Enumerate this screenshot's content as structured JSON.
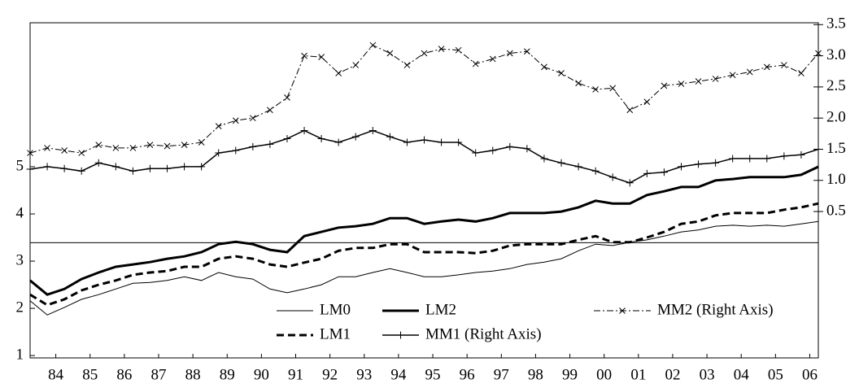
{
  "chart_data": {
    "type": "line",
    "x": [
      1983.75,
      1984.25,
      1984.75,
      1985.25,
      1985.75,
      1986.25,
      1986.75,
      1987.25,
      1987.75,
      1988.25,
      1988.75,
      1989.25,
      1989.75,
      1990.25,
      1990.75,
      1991.25,
      1991.75,
      1992.25,
      1992.75,
      1993.25,
      1993.75,
      1994.25,
      1994.75,
      1995.25,
      1995.75,
      1996.25,
      1996.75,
      1997.25,
      1997.75,
      1998.25,
      1998.75,
      1999.25,
      1999.75,
      2000.25,
      2000.75,
      2001.25,
      2001.75,
      2002.25,
      2002.75,
      2003.25,
      2003.75,
      2004.25,
      2004.75,
      2005.25,
      2005.75,
      2006.25,
      2006.75
    ],
    "xlim": [
      1983.75,
      2006.75
    ],
    "xticks": [
      {
        "value": 1984.5,
        "label": "84"
      },
      {
        "value": 1985.5,
        "label": "85"
      },
      {
        "value": 1986.5,
        "label": "86"
      },
      {
        "value": 1987.5,
        "label": "87"
      },
      {
        "value": 1988.5,
        "label": "88"
      },
      {
        "value": 1989.5,
        "label": "89"
      },
      {
        "value": 1990.5,
        "label": "90"
      },
      {
        "value": 1991.5,
        "label": "91"
      },
      {
        "value": 1992.5,
        "label": "92"
      },
      {
        "value": 1993.5,
        "label": "93"
      },
      {
        "value": 1994.5,
        "label": "94"
      },
      {
        "value": 1995.5,
        "label": "95"
      },
      {
        "value": 1996.5,
        "label": "96"
      },
      {
        "value": 1997.5,
        "label": "97"
      },
      {
        "value": 1998.5,
        "label": "98"
      },
      {
        "value": 1999.5,
        "label": "99"
      },
      {
        "value": 2000.5,
        "label": "00"
      },
      {
        "value": 2001.5,
        "label": "01"
      },
      {
        "value": 2002.5,
        "label": "02"
      },
      {
        "value": 2003.5,
        "label": "03"
      },
      {
        "value": 2004.5,
        "label": "04"
      },
      {
        "value": 2005.5,
        "label": "05"
      },
      {
        "value": 2006.5,
        "label": "06"
      }
    ],
    "ylim": [
      0.95,
      8.05
    ],
    "yticks": [
      1,
      2,
      3,
      4,
      5
    ],
    "y2lim": [
      -1.85,
      3.53
    ],
    "y2ticks": [
      0.5,
      {
        "value": 1.0,
        "label": "1.0"
      },
      1.5,
      {
        "value": 2.0,
        "label": "2.0"
      },
      2.5,
      {
        "value": 3.0,
        "label": "3.0"
      },
      3.5
    ],
    "hline": {
      "axis": "y2",
      "value": 0
    },
    "series": [
      {
        "name": "LM0",
        "color": "#000000",
        "width": 1,
        "dash": "solid",
        "marker": "none",
        "values": [
          2.16,
          1.86,
          2.02,
          2.19,
          2.29,
          2.41,
          2.53,
          2.55,
          2.59,
          2.67,
          2.59,
          2.76,
          2.67,
          2.62,
          2.41,
          2.33,
          2.41,
          2.5,
          2.67,
          2.67,
          2.76,
          2.84,
          2.76,
          2.67,
          2.67,
          2.71,
          2.76,
          2.79,
          2.84,
          2.93,
          2.98,
          3.05,
          3.22,
          3.36,
          3.33,
          3.4,
          3.45,
          3.53,
          3.62,
          3.66,
          3.74,
          3.76,
          3.74,
          3.76,
          3.74,
          3.79,
          3.84
        ]
      },
      {
        "name": "LM2",
        "color": "#000000",
        "width": 3,
        "dash": "solid",
        "marker": "none",
        "values": [
          2.59,
          2.29,
          2.41,
          2.62,
          2.76,
          2.88,
          2.93,
          2.98,
          3.05,
          3.1,
          3.19,
          3.36,
          3.41,
          3.36,
          3.24,
          3.19,
          3.53,
          3.62,
          3.71,
          3.74,
          3.79,
          3.91,
          3.91,
          3.79,
          3.84,
          3.88,
          3.84,
          3.91,
          4.02,
          4.02,
          4.02,
          4.05,
          4.14,
          4.28,
          4.22,
          4.22,
          4.4,
          4.48,
          4.57,
          4.57,
          4.71,
          4.74,
          4.78,
          4.78,
          4.78,
          4.83,
          5.0
        ]
      },
      {
        "name": "MM2 (Right Axis)",
        "color": "#000000",
        "width": 1,
        "dash": "dashdot",
        "marker": "x",
        "axis": "y2",
        "values": [
          1.44,
          1.52,
          1.48,
          1.44,
          1.57,
          1.52,
          1.52,
          1.57,
          1.55,
          1.57,
          1.61,
          1.87,
          1.96,
          2.0,
          2.13,
          2.33,
          3.0,
          2.98,
          2.72,
          2.85,
          3.17,
          3.04,
          2.85,
          3.04,
          3.11,
          3.09,
          2.87,
          2.95,
          3.04,
          3.07,
          2.82,
          2.72,
          2.56,
          2.46,
          2.48,
          2.13,
          2.26,
          2.52,
          2.55,
          2.59,
          2.63,
          2.69,
          2.74,
          2.82,
          2.85,
          2.72,
          3.04
        ]
      },
      {
        "name": "LM1",
        "color": "#000000",
        "width": 3,
        "dash": "dashed",
        "marker": "none",
        "values": [
          2.29,
          2.07,
          2.19,
          2.38,
          2.5,
          2.59,
          2.71,
          2.76,
          2.79,
          2.88,
          2.88,
          3.05,
          3.1,
          3.05,
          2.93,
          2.88,
          2.97,
          3.05,
          3.22,
          3.28,
          3.28,
          3.36,
          3.36,
          3.19,
          3.19,
          3.19,
          3.17,
          3.22,
          3.33,
          3.36,
          3.36,
          3.36,
          3.45,
          3.53,
          3.4,
          3.4,
          3.5,
          3.62,
          3.79,
          3.84,
          3.97,
          4.02,
          4.02,
          4.02,
          4.09,
          4.14,
          4.22
        ]
      },
      {
        "name": "MM1 (Right Axis)",
        "color": "#000000",
        "width": 1.5,
        "dash": "solid",
        "marker": "plus",
        "axis": "y2",
        "values": [
          1.18,
          1.22,
          1.19,
          1.15,
          1.28,
          1.22,
          1.15,
          1.19,
          1.19,
          1.22,
          1.22,
          1.44,
          1.48,
          1.54,
          1.58,
          1.67,
          1.8,
          1.67,
          1.61,
          1.7,
          1.8,
          1.7,
          1.61,
          1.65,
          1.61,
          1.61,
          1.44,
          1.48,
          1.54,
          1.51,
          1.35,
          1.28,
          1.22,
          1.15,
          1.05,
          0.96,
          1.11,
          1.13,
          1.22,
          1.26,
          1.28,
          1.35,
          1.35,
          1.35,
          1.39,
          1.41,
          1.5
        ]
      }
    ]
  }
}
